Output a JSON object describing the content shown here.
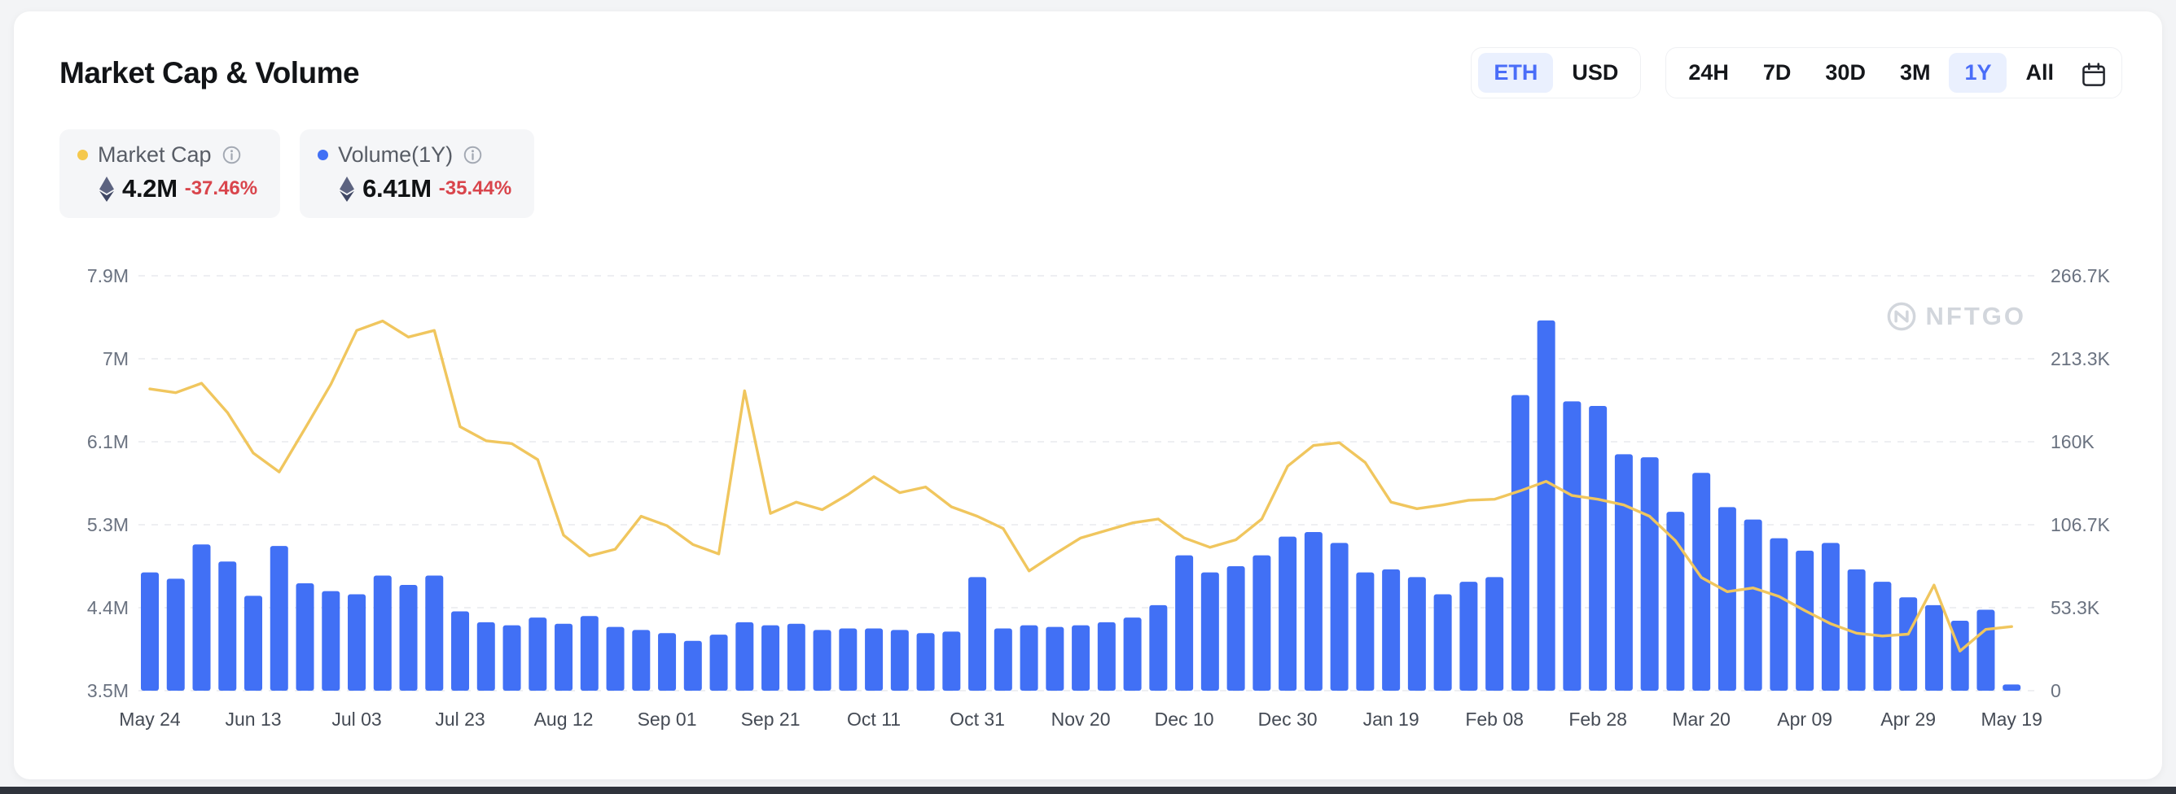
{
  "page": {
    "bottom_bar_color": "#2F333C"
  },
  "header": {
    "title": "Market Cap & Volume"
  },
  "currency_toggle": {
    "options": [
      {
        "label": "ETH",
        "active": true
      },
      {
        "label": "USD",
        "active": false
      }
    ]
  },
  "time_ranges": {
    "options": [
      {
        "label": "24H",
        "active": false
      },
      {
        "label": "7D",
        "active": false
      },
      {
        "label": "30D",
        "active": false
      },
      {
        "label": "3M",
        "active": false
      },
      {
        "label": "1Y",
        "active": true
      },
      {
        "label": "All",
        "active": false
      }
    ]
  },
  "legend": [
    {
      "name": "Market Cap",
      "dot_color": "#F5C84C",
      "value": "4.2M",
      "change": "-37.46%",
      "unit_icon": "eth"
    },
    {
      "name": "Volume(1Y)",
      "dot_color": "#4170F5",
      "value": "6.41M",
      "change": "-35.44%",
      "unit_icon": "eth"
    }
  ],
  "watermark": {
    "text": "NFTGO"
  },
  "chart_data": {
    "type": "bar+line",
    "title": "Market Cap & Volume (1Y)",
    "day_step": 5,
    "x_labels": [
      {
        "label": "May 24",
        "day": 0
      },
      {
        "label": "Jun 13",
        "day": 20
      },
      {
        "label": "Jul 03",
        "day": 40
      },
      {
        "label": "Jul 23",
        "day": 60
      },
      {
        "label": "Aug 12",
        "day": 80
      },
      {
        "label": "Sep 01",
        "day": 100
      },
      {
        "label": "Sep 21",
        "day": 120
      },
      {
        "label": "Oct 11",
        "day": 140
      },
      {
        "label": "Oct 31",
        "day": 160
      },
      {
        "label": "Nov 20",
        "day": 180
      },
      {
        "label": "Dec 10",
        "day": 200
      },
      {
        "label": "Dec 30",
        "day": 220
      },
      {
        "label": "Jan 19",
        "day": 240
      },
      {
        "label": "Feb 08",
        "day": 260
      },
      {
        "label": "Feb 28",
        "day": 280
      },
      {
        "label": "Mar 20",
        "day": 300
      },
      {
        "label": "Apr 09",
        "day": 320
      },
      {
        "label": "Apr 29",
        "day": 340
      },
      {
        "label": "May 19",
        "day": 360
      }
    ],
    "series": [
      {
        "name": "Volume(1Y)",
        "type": "bar",
        "axis": "right",
        "unit": "K",
        "color": "#4170F5",
        "values": [
          76,
          72,
          94,
          83,
          61,
          93,
          69,
          64,
          62,
          74,
          68,
          74,
          51,
          44,
          42,
          47,
          43,
          48,
          41,
          39,
          37,
          32,
          36,
          44,
          42,
          43,
          39,
          40,
          40,
          39,
          37,
          38,
          73,
          40,
          42,
          41,
          42,
          44,
          47,
          55,
          87,
          76,
          80,
          87,
          99,
          102,
          95,
          76,
          78,
          73,
          62,
          70,
          73,
          190,
          238,
          186,
          183,
          152,
          150,
          115,
          140,
          118,
          110,
          98,
          90,
          95,
          78,
          70,
          60,
          55,
          45,
          52,
          4
        ]
      },
      {
        "name": "Market Cap",
        "type": "line",
        "axis": "left",
        "unit": "M",
        "color": "#F0C65E",
        "values": [
          6.7,
          6.66,
          6.76,
          6.45,
          6.02,
          5.82,
          6.28,
          6.75,
          7.32,
          7.42,
          7.25,
          7.32,
          6.3,
          6.15,
          6.12,
          5.95,
          5.15,
          4.93,
          5.0,
          5.35,
          5.25,
          5.05,
          4.95,
          6.68,
          5.38,
          5.5,
          5.42,
          5.58,
          5.77,
          5.6,
          5.66,
          5.45,
          5.35,
          5.22,
          4.77,
          4.95,
          5.12,
          5.2,
          5.28,
          5.32,
          5.12,
          5.02,
          5.1,
          5.32,
          5.88,
          6.1,
          6.13,
          5.92,
          5.5,
          5.43,
          5.47,
          5.52,
          5.53,
          5.62,
          5.72,
          5.57,
          5.53,
          5.47,
          5.35,
          5.09,
          4.7,
          4.55,
          4.59,
          4.5,
          4.35,
          4.21,
          4.11,
          4.08,
          4.1,
          4.62,
          3.92,
          4.15,
          4.18
        ]
      }
    ],
    "left_axis": {
      "min": 3.5,
      "max": 7.9,
      "tick_labels": [
        "7.9M",
        "7M",
        "6.1M",
        "5.3M",
        "4.4M",
        "3.5M"
      ]
    },
    "right_axis": {
      "min": 0,
      "max": 266.7,
      "tick_labels": [
        "266.7K",
        "213.3K",
        "160K",
        "106.7K",
        "53.3K",
        "0"
      ]
    },
    "grid": "horizontal-dashed",
    "legend_position": "top-left"
  }
}
